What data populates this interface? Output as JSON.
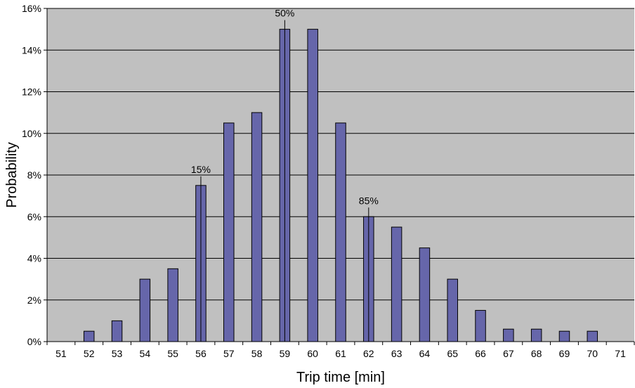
{
  "chart_data": {
    "type": "bar",
    "title": "",
    "xlabel": "Trip time [min]",
    "ylabel": "Probability",
    "ylim": [
      0,
      16
    ],
    "yticks": [
      "0%",
      "2%",
      "4%",
      "6%",
      "8%",
      "10%",
      "12%",
      "14%",
      "16%"
    ],
    "categories": [
      "51",
      "52",
      "53",
      "54",
      "55",
      "56",
      "57",
      "58",
      "59",
      "60",
      "61",
      "62",
      "63",
      "64",
      "65",
      "66",
      "67",
      "68",
      "69",
      "70",
      "71"
    ],
    "values": [
      0,
      0.5,
      1,
      3,
      3.5,
      7.5,
      10.5,
      11,
      15,
      15,
      10.5,
      6,
      5.5,
      4.5,
      3,
      1.5,
      0.6,
      0.6,
      0.5,
      0.5,
      0
    ],
    "value_unit": "%",
    "grid": true,
    "legend": "none",
    "annotations": [
      {
        "label": "15%",
        "x": 56
      },
      {
        "label": "50%",
        "x": 59
      },
      {
        "label": "85%",
        "x": 62
      }
    ],
    "colors": {
      "plot_background": "#c0c0c0",
      "bar_fill": "#6666aa",
      "bar_stroke": "#000000",
      "grid": "#000000"
    }
  }
}
